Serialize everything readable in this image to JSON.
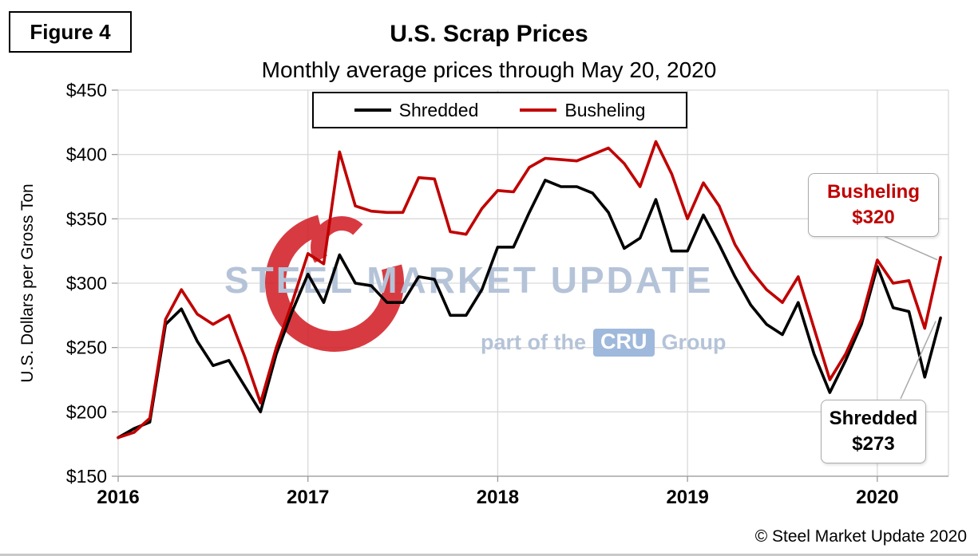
{
  "figure_label": "Figure 4",
  "title": "U.S. Scrap Prices",
  "subtitle": "Monthly average prices through May 20, 2020",
  "y_axis_label": "U.S. Dollars per Gross Ton",
  "copyright": "© Steel Market Update 2020",
  "watermark": {
    "line1": "STEEL MARKET UPDATE",
    "line2_prefix": "part of the",
    "line2_badge": "CRU",
    "line2_suffix": "Group"
  },
  "annotations": {
    "busheling": {
      "label": "Busheling",
      "value": "$320"
    },
    "shredded": {
      "label": "Shredded",
      "value": "$273"
    }
  },
  "colors": {
    "shredded": "#000000",
    "busheling": "#C00000",
    "grid": "#d9d9d9",
    "axis": "#9a9a9a",
    "leader_line": "#a8a8a8",
    "watermark_text": "#b5c3d8",
    "cru_badge": "#9fb9dc",
    "logo": "#d22027",
    "callout_border": "#ababab"
  },
  "chart_data": {
    "type": "line",
    "title": "U.S. Scrap Prices",
    "subtitle": "Monthly average prices through May 20, 2020",
    "xlabel": "",
    "ylabel": "U.S. Dollars per Gross Ton",
    "ylim": [
      150,
      450
    ],
    "y_tick_step": 50,
    "y_ticks": [
      "$450",
      "$400",
      "$350",
      "$300",
      "$250",
      "$200",
      "$150"
    ],
    "x_ticks": [
      "2016",
      "2017",
      "2018",
      "2019",
      "2020"
    ],
    "x_unit": "month",
    "x_start": "2016-01",
    "x_end": "2020-05",
    "grid": true,
    "legend_position": "top-center",
    "series": [
      {
        "name": "Shredded",
        "color": "#000000",
        "values": [
          180,
          187,
          192,
          268,
          280,
          255,
          236,
          240,
          220,
          200,
          245,
          278,
          307,
          285,
          322,
          300,
          298,
          285,
          285,
          305,
          303,
          275,
          275,
          295,
          328,
          328,
          355,
          380,
          375,
          375,
          370,
          355,
          327,
          335,
          365,
          325,
          325,
          353,
          330,
          305,
          283,
          268,
          260,
          285,
          245,
          215,
          240,
          268,
          313,
          281,
          278,
          227,
          273
        ]
      },
      {
        "name": "Busheling",
        "color": "#C00000",
        "values": [
          180,
          184,
          195,
          272,
          295,
          276,
          268,
          275,
          243,
          207,
          250,
          285,
          323,
          315,
          402,
          360,
          356,
          355,
          355,
          382,
          381,
          340,
          338,
          358,
          372,
          371,
          390,
          397,
          396,
          395,
          400,
          405,
          393,
          375,
          410,
          385,
          350,
          378,
          360,
          330,
          310,
          295,
          285,
          305,
          265,
          225,
          245,
          272,
          318,
          300,
          302,
          265,
          320
        ]
      }
    ],
    "final_values": {
      "Shredded": 273,
      "Busheling": 320
    }
  }
}
